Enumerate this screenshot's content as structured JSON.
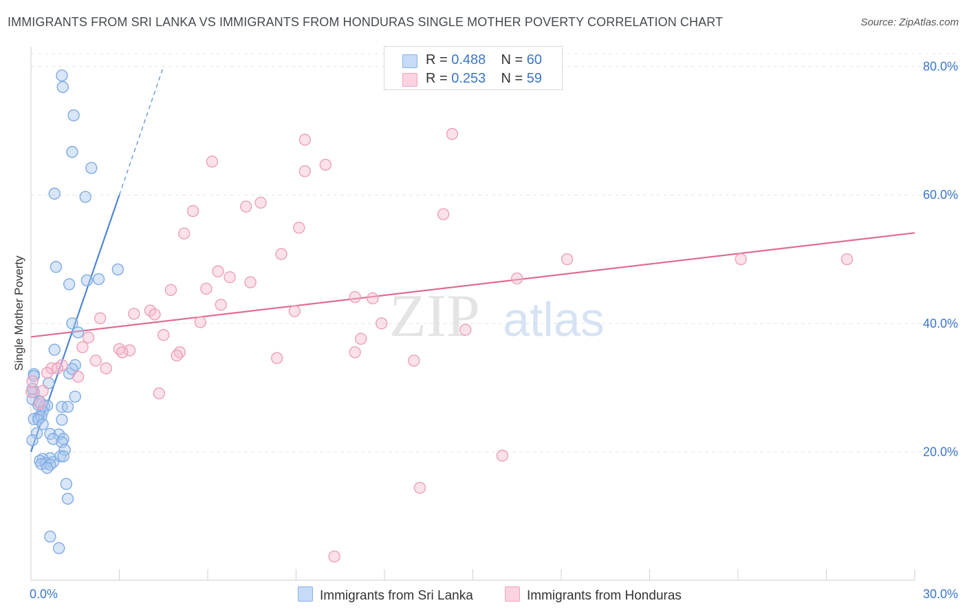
{
  "title": "IMMIGRANTS FROM SRI LANKA VS IMMIGRANTS FROM HONDURAS SINGLE MOTHER POVERTY CORRELATION CHART",
  "source": "Source: ZipAtlas.com",
  "watermark": {
    "zip": "ZIP",
    "atlas": "atlas"
  },
  "legend": {
    "r_label": "R =",
    "n_label": "N =",
    "rows": [
      {
        "r": "0.488",
        "n": "60",
        "color": "#a9c8f0"
      },
      {
        "r": "0.253",
        "n": "59",
        "color": "#f7bdd0"
      }
    ]
  },
  "chart_data": {
    "type": "scatter",
    "title": "IMMIGRANTS FROM SRI LANKA VS IMMIGRANTS FROM HONDURAS SINGLE MOTHER POVERTY CORRELATION CHART",
    "xlabel": "",
    "ylabel": "Single Mother Poverty",
    "xlim": [
      0,
      30
    ],
    "ylim": [
      0,
      82
    ],
    "x_tick_labels": [
      "0.0%",
      "30.0%"
    ],
    "y_ticks": [
      20,
      40,
      60,
      80
    ],
    "y_tick_labels": [
      "20.0%",
      "40.0%",
      "60.0%",
      "80.0%"
    ],
    "grid": true,
    "series": [
      {
        "name": "Immigrants from Sri Lanka",
        "color": "#4a86d4",
        "fill": "#a9c8f0",
        "trend": {
          "x0": 0.0,
          "y0": 20.0,
          "x1": 3.0,
          "y1": 60.0,
          "dash_to_x": 4.5,
          "dash_to_y": 80.0
        },
        "points": [
          [
            1.05,
            78.6
          ],
          [
            1.08,
            76.8
          ],
          [
            1.45,
            72.4
          ],
          [
            1.4,
            66.7
          ],
          [
            2.05,
            64.2
          ],
          [
            0.8,
            60.2
          ],
          [
            1.85,
            59.7
          ],
          [
            0.85,
            48.8
          ],
          [
            2.95,
            48.4
          ],
          [
            1.3,
            46.1
          ],
          [
            1.9,
            46.7
          ],
          [
            2.3,
            46.9
          ],
          [
            1.4,
            40.0
          ],
          [
            1.6,
            38.6
          ],
          [
            0.8,
            35.9
          ],
          [
            1.5,
            33.5
          ],
          [
            1.3,
            32.2
          ],
          [
            1.4,
            32.9
          ],
          [
            0.6,
            30.7
          ],
          [
            0.1,
            32.1
          ],
          [
            0.1,
            29.3
          ],
          [
            0.05,
            28.2
          ],
          [
            0.25,
            27.3
          ],
          [
            0.45,
            27.1
          ],
          [
            0.55,
            27.2
          ],
          [
            1.05,
            27.0
          ],
          [
            1.25,
            27.0
          ],
          [
            0.4,
            26.3
          ],
          [
            0.25,
            25.4
          ],
          [
            0.1,
            25.1
          ],
          [
            0.35,
            25.5
          ],
          [
            0.25,
            25.0
          ],
          [
            1.05,
            25.0
          ],
          [
            1.5,
            28.6
          ],
          [
            0.4,
            24.3
          ],
          [
            0.2,
            22.9
          ],
          [
            0.05,
            21.8
          ],
          [
            0.65,
            22.8
          ],
          [
            0.95,
            22.7
          ],
          [
            1.1,
            22.0
          ],
          [
            0.75,
            22.0
          ],
          [
            1.05,
            21.5
          ],
          [
            1.15,
            20.3
          ],
          [
            0.65,
            19.0
          ],
          [
            0.4,
            18.9
          ],
          [
            0.3,
            18.6
          ],
          [
            0.75,
            18.4
          ],
          [
            0.5,
            18.2
          ],
          [
            0.35,
            18.1
          ],
          [
            0.65,
            18.0
          ],
          [
            0.55,
            17.5
          ],
          [
            1.0,
            19.3
          ],
          [
            1.1,
            19.3
          ],
          [
            1.2,
            15.0
          ],
          [
            1.25,
            12.7
          ],
          [
            0.65,
            6.8
          ],
          [
            0.95,
            5.0
          ],
          [
            0.05,
            29.8
          ],
          [
            0.3,
            27.8
          ],
          [
            0.1,
            31.8
          ]
        ]
      },
      {
        "name": "Immigrants from Honduras",
        "color": "#e06b96",
        "fill": "#f7bdd0",
        "trend": {
          "x0": 0.0,
          "y0": 37.9,
          "x1": 30.0,
          "y1": 54.1
        },
        "points": [
          [
            14.3,
            69.5
          ],
          [
            9.3,
            68.6
          ],
          [
            6.15,
            65.2
          ],
          [
            10.0,
            64.7
          ],
          [
            9.3,
            63.7
          ],
          [
            7.8,
            58.8
          ],
          [
            7.3,
            58.2
          ],
          [
            5.5,
            57.5
          ],
          [
            14.0,
            57.0
          ],
          [
            9.1,
            54.9
          ],
          [
            5.2,
            54.0
          ],
          [
            8.5,
            50.8
          ],
          [
            18.2,
            50.0
          ],
          [
            24.1,
            50.0
          ],
          [
            27.7,
            50.0
          ],
          [
            6.35,
            48.1
          ],
          [
            6.75,
            47.2
          ],
          [
            16.5,
            47.0
          ],
          [
            7.45,
            46.4
          ],
          [
            5.95,
            45.4
          ],
          [
            4.75,
            45.2
          ],
          [
            11.0,
            44.1
          ],
          [
            11.6,
            43.9
          ],
          [
            6.45,
            42.9
          ],
          [
            4.05,
            42.0
          ],
          [
            3.5,
            41.5
          ],
          [
            4.2,
            41.4
          ],
          [
            8.95,
            41.9
          ],
          [
            2.35,
            40.8
          ],
          [
            5.75,
            40.2
          ],
          [
            11.9,
            40.0
          ],
          [
            14.75,
            39.0
          ],
          [
            4.5,
            38.2
          ],
          [
            11.2,
            37.6
          ],
          [
            1.95,
            37.8
          ],
          [
            1.75,
            36.3
          ],
          [
            3.0,
            36.0
          ],
          [
            3.35,
            35.8
          ],
          [
            3.1,
            35.5
          ],
          [
            5.05,
            35.5
          ],
          [
            4.95,
            35.0
          ],
          [
            11.0,
            35.5
          ],
          [
            8.35,
            34.6
          ],
          [
            13.0,
            34.2
          ],
          [
            2.2,
            34.2
          ],
          [
            1.05,
            33.5
          ],
          [
            0.7,
            33.0
          ],
          [
            0.9,
            33.0
          ],
          [
            2.55,
            33.0
          ],
          [
            0.55,
            32.3
          ],
          [
            1.6,
            31.7
          ],
          [
            0.05,
            31.0
          ],
          [
            0.4,
            29.5
          ],
          [
            4.35,
            29.1
          ],
          [
            0.3,
            27.5
          ],
          [
            16.0,
            19.4
          ],
          [
            13.2,
            14.4
          ],
          [
            10.3,
            3.7
          ],
          [
            0.02,
            29.3
          ]
        ]
      }
    ]
  }
}
